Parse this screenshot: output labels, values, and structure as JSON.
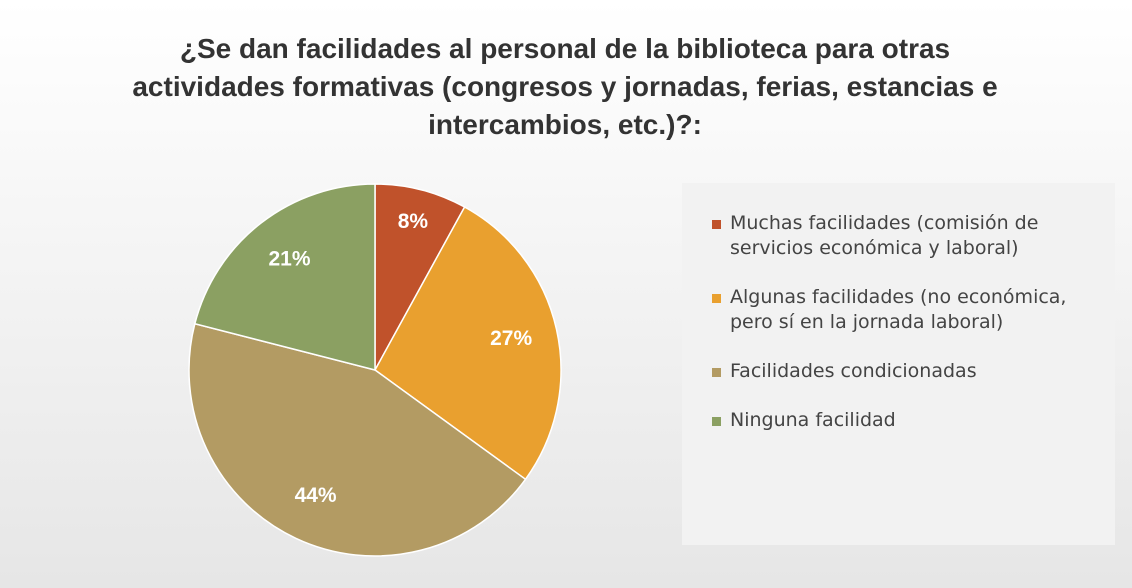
{
  "chart_data": {
    "type": "pie",
    "title": "¿Se dan facilidades al personal de la biblioteca para otras actividades formativas (congresos y jornadas, ferias, estancias e intercambios, etc.)?:",
    "categories": [
      "Muchas facilidades (comisión de servicios económica y laboral)",
      "Algunas facilidades (no económica, pero sí en la jornada laboral)",
      "Facilidades condicionadas",
      "Ninguna facilidad"
    ],
    "values": [
      8,
      27,
      44,
      21
    ],
    "value_labels": [
      "8%",
      "27%",
      "44%",
      "21%"
    ],
    "colors": [
      "#c0522b",
      "#e9a02f",
      "#b39b63",
      "#8ba062"
    ],
    "legend": "right"
  }
}
